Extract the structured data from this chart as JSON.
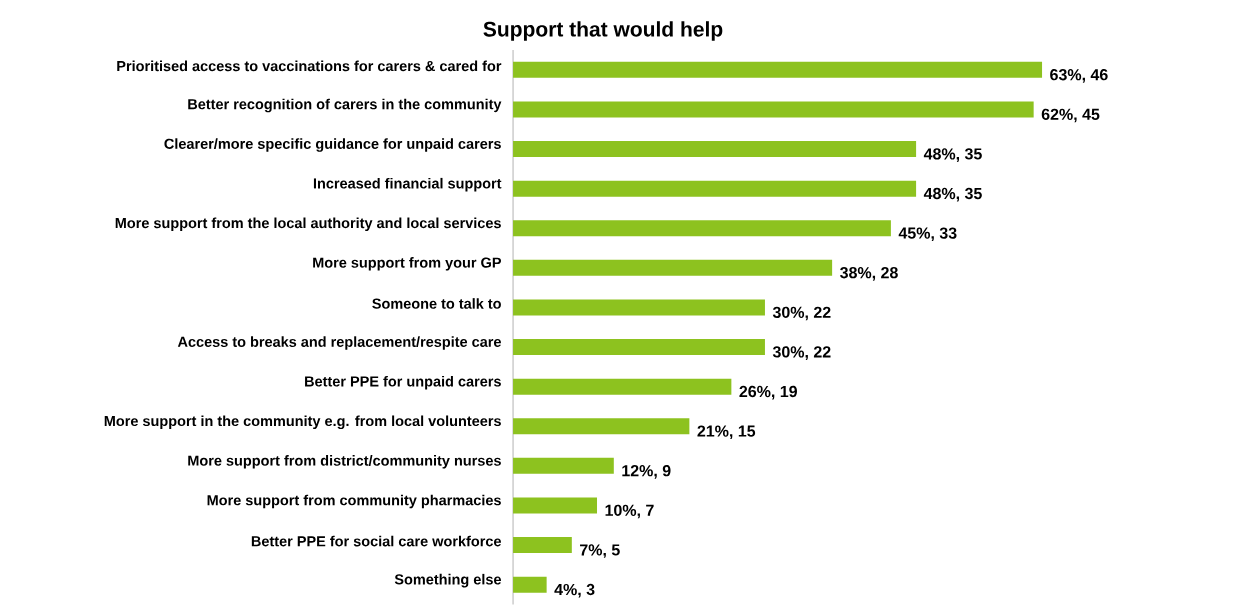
{
  "chart_data": {
    "type": "bar",
    "orientation": "horizontal",
    "title": "Support that would help",
    "categories": [
      "Prioritised access to vaccinations for carers & cared for",
      "Better recognition of carers in the community",
      "Clearer/more specific guidance for unpaid carers",
      "Increased financial support",
      "More support from the local authority and local services",
      "More support from your GP",
      "Someone to talk to",
      "Access to breaks and replacement/respite care",
      "Better PPE for unpaid carers",
      "More support in the community e.g. from local volunteers",
      "More support from district/community nurses",
      "More support from community pharmacies",
      "Better PPE for social care workforce",
      "Something else"
    ],
    "values": [
      63,
      62,
      48,
      48,
      45,
      38,
      30,
      30,
      26,
      21,
      12,
      10,
      7,
      4
    ],
    "value_labels": [
      "63%, 46",
      "62%, 45",
      "48%, 35",
      "48%, 35",
      "45%, 33",
      "38%, 28",
      "30%, 22",
      "30%, 22",
      "26%, 19",
      "21%, 15",
      "12%, 9",
      "10%, 7",
      "7%, 5",
      "4%, 3"
    ],
    "color": "#8dc21f"
  }
}
